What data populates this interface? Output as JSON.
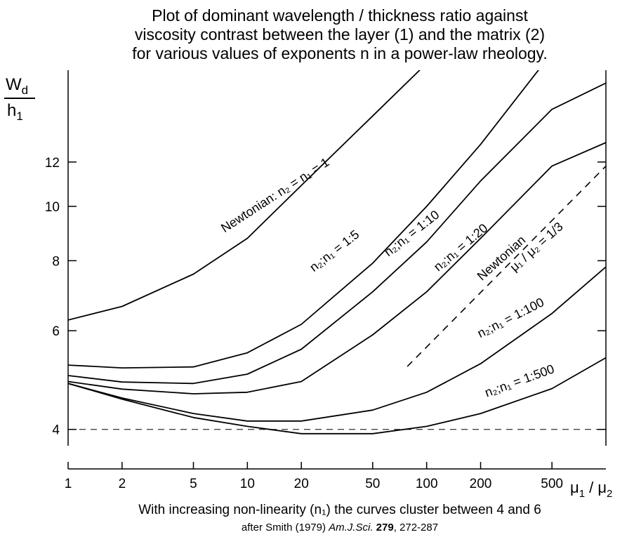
{
  "chart_data": {
    "type": "line",
    "title_lines": [
      "Plot of dominant wavelength / thickness ratio against",
      "viscosity contrast between the layer (1) and the matrix (2)",
      "for various values of exponents n in a power-law rheology."
    ],
    "ylabel": {
      "top": [
        "W",
        "d"
      ],
      "bottom": [
        "h",
        "1"
      ]
    },
    "xlabel": [
      "μ",
      "1",
      " / μ",
      "2"
    ],
    "xscale": "log",
    "yscale": "log",
    "xlim": [
      1,
      1000
    ],
    "ylim": [
      3.74,
      17.5
    ],
    "xticks": [
      1,
      2,
      5,
      10,
      20,
      50,
      100,
      200,
      500
    ],
    "yticks": [
      4,
      6,
      8,
      10,
      12
    ],
    "x": [
      1,
      2,
      5,
      10,
      20,
      50,
      100,
      200,
      500,
      1000
    ],
    "color": "#000000",
    "series": [
      {
        "name": "Newtonian: n₂ = n₁ = 1",
        "values": [
          6.27,
          6.63,
          7.57,
          8.77,
          10.9,
          14.5,
          18.0,
          null,
          null,
          null
        ]
      },
      {
        "name": "n₂;n₁ = 1:5",
        "values": [
          5.21,
          5.15,
          5.17,
          5.48,
          6.16,
          7.92,
          10.0,
          12.9,
          18.8,
          null
        ]
      },
      {
        "name": "n₂;n₁ = 1:10",
        "values": [
          4.99,
          4.86,
          4.83,
          5.02,
          5.56,
          7.04,
          8.64,
          11.1,
          14.9,
          16.6
        ]
      },
      {
        "name": "n₂;n₁ = 1:20",
        "values": [
          4.87,
          4.72,
          4.63,
          4.66,
          4.87,
          5.9,
          7.04,
          8.77,
          11.8,
          13.0
        ]
      },
      {
        "name": "n₂;n₁ = 1:100",
        "values": [
          4.83,
          4.55,
          4.27,
          4.14,
          4.14,
          4.33,
          4.66,
          5.24,
          6.44,
          7.8
        ]
      },
      {
        "name": "n₂;n₁ = 1:500",
        "values": [
          4.83,
          4.53,
          4.2,
          4.05,
          3.93,
          3.93,
          4.05,
          4.27,
          4.73,
          5.37
        ]
      }
    ],
    "dashed_series": {
      "label_lines": [
        "Newtonian",
        "μ₁ / μ₂ = 1/3"
      ],
      "x": [
        78,
        1000
      ],
      "values": [
        5.18,
        11.8
      ]
    },
    "reference_line": 4,
    "footer": [
      "With increasing non-linearity (n₁) the curves cluster between 4 and 6"
    ],
    "citation": [
      "after Smith (1979) ",
      "Am.J.Sci.",
      " 279",
      ", 272-287"
    ]
  }
}
